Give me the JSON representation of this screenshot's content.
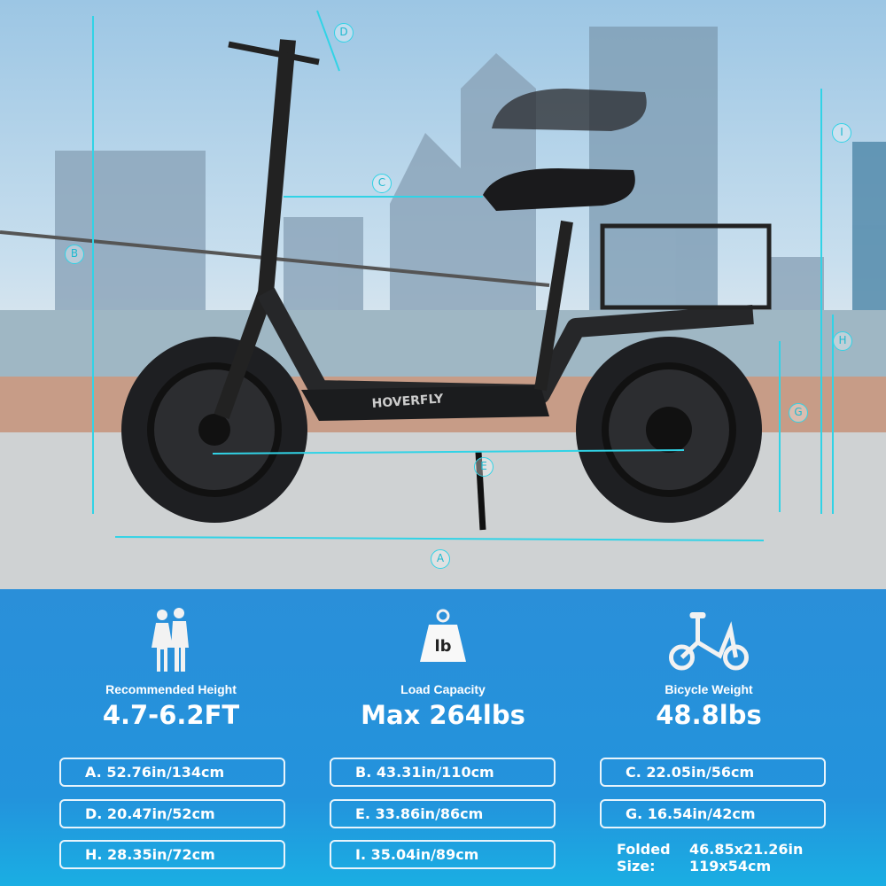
{
  "brand_on_deck": "HOVERFLY",
  "markers": [
    "A",
    "B",
    "C",
    "D",
    "E",
    "G",
    "H",
    "I"
  ],
  "features": [
    {
      "icon": "couple-icon",
      "label": "Recommended Height",
      "value": "4.7-6.2FT"
    },
    {
      "icon": "weight-icon",
      "icon_text": "lb",
      "label": "Load Capacity",
      "value": "Max 264lbs"
    },
    {
      "icon": "scooter-icon",
      "label": "Bicycle Weight",
      "value": "48.8lbs"
    }
  ],
  "dimensions": [
    "A. 52.76in/134cm",
    "B. 43.31in/110cm",
    "C. 22.05in/56cm",
    "D. 20.47in/52cm",
    "E. 33.86in/86cm",
    "G. 16.54in/42cm",
    "H. 28.35in/72cm",
    "I. 35.04in/89cm"
  ],
  "folded": {
    "label_1": "Folded",
    "label_2": "Size:",
    "value_in": "46.85x21.26in",
    "value_cm": "119x54cm"
  },
  "colors": {
    "accent": "#31d3e6",
    "panel": "#2393dc"
  }
}
